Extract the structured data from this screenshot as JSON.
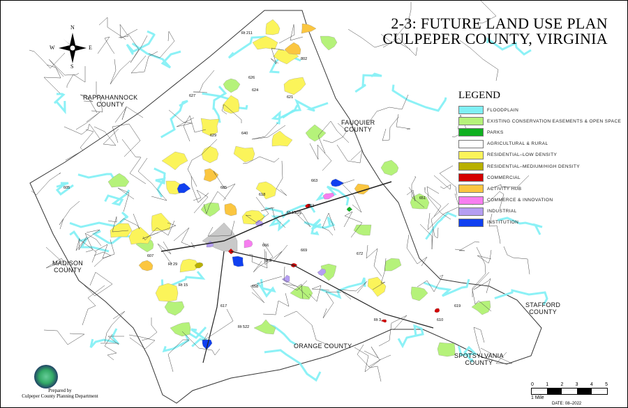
{
  "title": {
    "line1": "2-3: FUTURE LAND USE PLAN",
    "line2": "CULPEPER COUNTY, VIRGINIA"
  },
  "compass": {
    "n": "N",
    "s": "S",
    "e": "E",
    "w": "W"
  },
  "legend": {
    "title": "LEGEND",
    "items": [
      {
        "label": "FLOODPLAIN",
        "color": "#7ff0f5"
      },
      {
        "label": "EXISTING CONSERVATION EASEMENTS & OPEN SPACE",
        "color": "#b5f27a"
      },
      {
        "label": "PARKS",
        "color": "#0fb020"
      },
      {
        "label": "AGRICULTURAL & RURAL",
        "color": "#ffffff"
      },
      {
        "label": "RESIDENTIAL–LOW DENSITY",
        "color": "#fbf45a"
      },
      {
        "label": "RESIDENTIAL–MEDIUM/HIGH DENSITY",
        "color": "#b8b000"
      },
      {
        "label": "COMMERCIAL",
        "color": "#d40000"
      },
      {
        "label": "ACTIVITY HUB",
        "color": "#fbc640"
      },
      {
        "label": "COMMERCE & INNOVATION",
        "color": "#f77ef0"
      },
      {
        "label": "INDUSTRIAL",
        "color": "#b59ef2"
      },
      {
        "label": "INSTITUTION",
        "color": "#1040f0"
      }
    ]
  },
  "counties": {
    "rappahannock": "RAPPAHANNOCK\nCOUNTY",
    "fauquier": "FAUQUIER\nCOUNTY",
    "madison": "MADISON\nCOUNTY",
    "orange": "ORANGE COUNTY",
    "spotsylvania": "SPOTSYLVANIA\nCOUNTY",
    "stafford": "STAFFORD\nCOUNTY"
  },
  "routes": [
    "Rt 211",
    "802",
    "626",
    "624",
    "640",
    "621",
    "627",
    "629",
    "685",
    "618",
    "663",
    "Rt 15/29",
    "762",
    "666",
    "672",
    "Rt 3",
    "658",
    "617",
    "Rt 522",
    "Rt 29",
    "619",
    "610",
    "651",
    "Rt 15",
    "607",
    "605",
    "669",
    "Rt 3"
  ],
  "scale": {
    "ticks": [
      "0",
      "1",
      "2",
      "3",
      "4",
      "5"
    ],
    "unit": "1 Mile"
  },
  "date": "DATE: 08–2022",
  "prepared": {
    "line1": "Prepared by",
    "line2": "Culpeper County Planning Department"
  }
}
